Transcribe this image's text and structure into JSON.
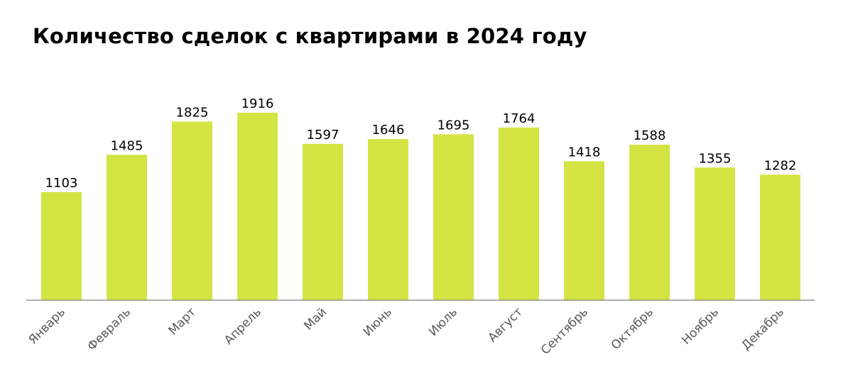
{
  "chart_data": {
    "type": "bar",
    "title": "Количество сделок с квартирами в 2024 году",
    "categories": [
      "Январь",
      "Февраль",
      "Март",
      "Апрель",
      "Май",
      "Июнь",
      "Июль",
      "Август",
      "Сентябрь",
      "Октябрь",
      "Ноябрь",
      "Декабрь"
    ],
    "values": [
      1103,
      1485,
      1825,
      1916,
      1597,
      1646,
      1695,
      1764,
      1418,
      1588,
      1355,
      1282
    ],
    "xlabel": "",
    "ylabel": "",
    "ylim": [
      0,
      1916
    ],
    "grid": false,
    "data_labels": true,
    "colors": {
      "bar": "#d4e443",
      "axis": "#808080",
      "label": "#595959"
    }
  }
}
